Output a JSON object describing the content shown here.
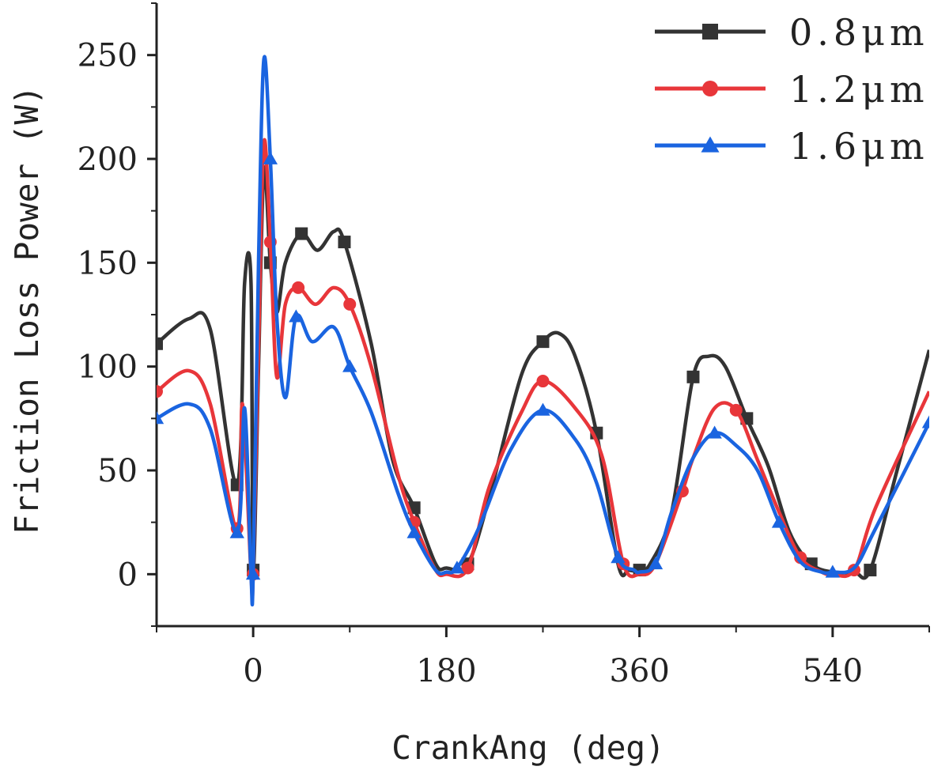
{
  "chart_data": {
    "type": "line",
    "xlabel": "CrankAng (deg)",
    "ylabel": "Friction Loss Power (W)",
    "xlim": [
      -90,
      630
    ],
    "ylim": [
      -25,
      275
    ],
    "xticks": [
      0,
      180,
      360,
      540
    ],
    "yticks": [
      0,
      50,
      100,
      150,
      200,
      250
    ],
    "grid": false,
    "legend": "top-right",
    "series": [
      {
        "name": "0.8μm",
        "color": "#333333",
        "marker": "square",
        "x": [
          -90,
          -60,
          -40,
          -15,
          -8,
          -2,
          0,
          5,
          10,
          16,
          22,
          30,
          45,
          60,
          75,
          85,
          110,
          130,
          150,
          170,
          180,
          200,
          220,
          250,
          270,
          285,
          300,
          320,
          340,
          350,
          360,
          370,
          390,
          410,
          425,
          440,
          460,
          480,
          500,
          520,
          540,
          560,
          575,
          600,
          630
        ],
        "y": [
          111,
          123,
          118,
          43,
          140,
          140,
          2,
          100,
          195,
          150,
          126,
          150,
          164,
          156,
          165,
          160,
          111,
          55,
          32,
          5,
          3,
          5,
          37,
          96,
          112,
          116,
          105,
          68,
          5,
          2,
          2,
          5,
          30,
          95,
          105,
          100,
          75,
          52,
          20,
          5,
          1,
          1,
          2,
          50,
          108
        ]
      },
      {
        "name": "1.2μm",
        "color": "#e8363a",
        "marker": "circle",
        "x": [
          -90,
          -60,
          -40,
          -15,
          -10,
          -2,
          0,
          5,
          10,
          16,
          22,
          30,
          42,
          58,
          75,
          90,
          110,
          135,
          150,
          170,
          180,
          200,
          220,
          250,
          270,
          300,
          325,
          345,
          360,
          375,
          400,
          410,
          430,
          450,
          470,
          490,
          510,
          530,
          540,
          560,
          580,
          630
        ],
        "y": [
          88,
          98,
          82,
          22,
          82,
          0,
          0,
          110,
          208,
          160,
          95,
          130,
          138,
          130,
          138,
          130,
          100,
          48,
          25,
          2,
          0,
          3,
          42,
          78,
          93,
          80,
          57,
          5,
          0,
          5,
          40,
          56,
          80,
          79,
          55,
          30,
          8,
          1,
          0,
          2,
          32,
          88
        ]
      },
      {
        "name": "1.6μm",
        "color": "#1a64e0",
        "marker": "triangle",
        "x": [
          -90,
          -60,
          -40,
          -15,
          -8,
          -2,
          0,
          5,
          10,
          16,
          22,
          30,
          40,
          55,
          75,
          90,
          110,
          135,
          150,
          170,
          180,
          190,
          210,
          240,
          270,
          300,
          320,
          340,
          355,
          360,
          375,
          390,
          410,
          430,
          450,
          470,
          490,
          510,
          530,
          540,
          560,
          580,
          630
        ],
        "y": [
          75,
          82,
          70,
          20,
          80,
          0,
          0,
          150,
          248,
          200,
          124,
          85,
          124,
          112,
          119,
          100,
          78,
          39,
          20,
          2,
          1,
          3,
          22,
          60,
          79,
          65,
          44,
          8,
          2,
          1,
          5,
          30,
          56,
          68,
          62,
          50,
          25,
          6,
          1,
          1,
          3,
          22,
          73
        ]
      }
    ]
  }
}
